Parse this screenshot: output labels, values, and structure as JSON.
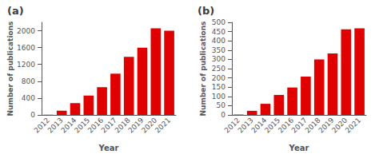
{
  "chart_data": [
    {
      "type": "bar",
      "title": "(a)",
      "categories": [
        "2012",
        "2013",
        "2014",
        "2015",
        "2016",
        "2017",
        "2018",
        "2019",
        "2020",
        "2021"
      ],
      "values": [
        5,
        100,
        280,
        460,
        660,
        980,
        1380,
        1600,
        2060,
        2000
      ],
      "xlabel": "Year",
      "ylabel": "Number of publications",
      "color": "#e00000",
      "ylim": [
        0,
        2200
      ],
      "yticks": [
        0,
        400,
        800,
        1200,
        1600,
        2000
      ],
      "grid": false
    },
    {
      "type": "bar",
      "title": "(b)",
      "categories": [
        "2012",
        "2013",
        "2014",
        "2015",
        "2016",
        "2017",
        "2018",
        "2019",
        "2020",
        "2021"
      ],
      "values": [
        2,
        22,
        60,
        108,
        148,
        207,
        300,
        332,
        462,
        468
      ],
      "xlabel": "Year",
      "ylabel": "Number of publications",
      "color": "#e00000",
      "ylim": [
        0,
        500
      ],
      "yticks": [
        0,
        50,
        100,
        150,
        200,
        250,
        300,
        350,
        400,
        450,
        500
      ],
      "grid": false
    }
  ]
}
